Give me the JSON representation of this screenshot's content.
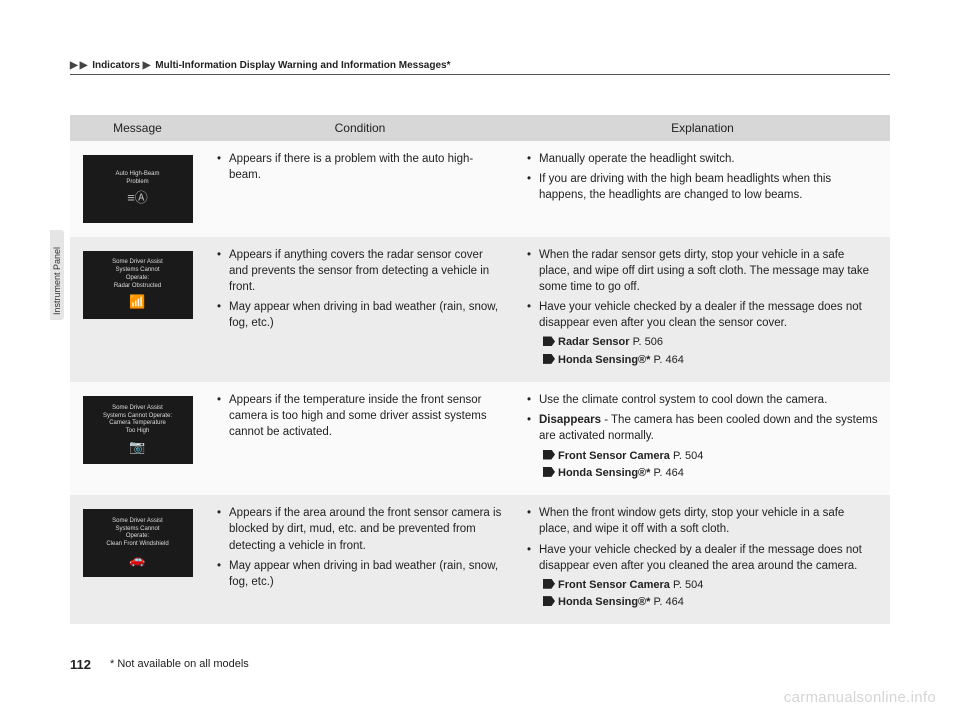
{
  "breadcrumb": {
    "seg1": "Indicators",
    "seg2": "Multi-Information Display Warning and Information Messages*"
  },
  "sidetab_label": "Instrument Panel",
  "table": {
    "headers": {
      "message": "Message",
      "condition": "Condition",
      "explanation": "Explanation"
    },
    "rows": [
      {
        "display_lines": [
          "Auto High-Beam",
          "Problem"
        ],
        "display_icon": "≡Ⓐ",
        "condition": [
          "Appears if there is a problem with the auto high-beam."
        ],
        "explanation": [
          "Manually operate the headlight switch.",
          "If you are driving with the high beam headlights when this happens, the headlights are changed to low beams."
        ],
        "refs": []
      },
      {
        "display_lines": [
          "Some Driver Assist",
          "Systems Cannot",
          "Operate:",
          "Radar Obstructed"
        ],
        "display_icon": "📶",
        "condition": [
          "Appears if anything covers the radar sensor cover and prevents the sensor from detecting a vehicle in front.",
          "May appear when driving in bad weather (rain, snow, fog, etc.)"
        ],
        "explanation": [
          "When the radar sensor gets dirty, stop your vehicle in a safe place, and wipe off dirt using a soft cloth. The message may take some time to go off.",
          "Have your vehicle checked by a dealer if the message does not disappear even after you clean the sensor cover."
        ],
        "refs": [
          {
            "label": "Radar Sensor",
            "page": "P. 506"
          },
          {
            "label": "Honda Sensing®*",
            "page": "P. 464"
          }
        ]
      },
      {
        "display_lines": [
          "Some Driver Assist",
          "Systems Cannot Operate:",
          "Camera Temperature",
          "Too High"
        ],
        "display_icon": "📷",
        "condition": [
          "Appears if the temperature inside the front sensor camera is too high and some driver assist systems cannot be activated."
        ],
        "explanation": [
          "Use the climate control system to cool down the camera.",
          "<span class=\"bold\">Disappears</span> - The camera has been cooled down and the systems are activated normally."
        ],
        "refs": [
          {
            "label": "Front Sensor Camera",
            "page": "P. 504"
          },
          {
            "label": "Honda Sensing®*",
            "page": "P. 464"
          }
        ]
      },
      {
        "display_lines": [
          "Some Driver Assist",
          "Systems Cannot",
          "Operate:",
          "Clean Front Windshield"
        ],
        "display_icon": "🚗",
        "condition": [
          "Appears if the area around the front sensor camera is blocked by dirt, mud, etc. and be prevented from detecting a vehicle in front.",
          "May appear when driving in bad weather (rain, snow, fog, etc.)"
        ],
        "explanation": [
          "When the front window gets dirty, stop your vehicle in a safe place, and wipe it off with a soft cloth.",
          "Have your vehicle checked by a dealer if the message does not disappear even after you cleaned the area around the camera."
        ],
        "refs": [
          {
            "label": "Front Sensor Camera",
            "page": "P. 504"
          },
          {
            "label": "Honda Sensing®*",
            "page": "P. 464"
          }
        ]
      }
    ]
  },
  "page_number": "112",
  "footnote": "* Not available on all models",
  "watermark": "carmanualsonline.info"
}
